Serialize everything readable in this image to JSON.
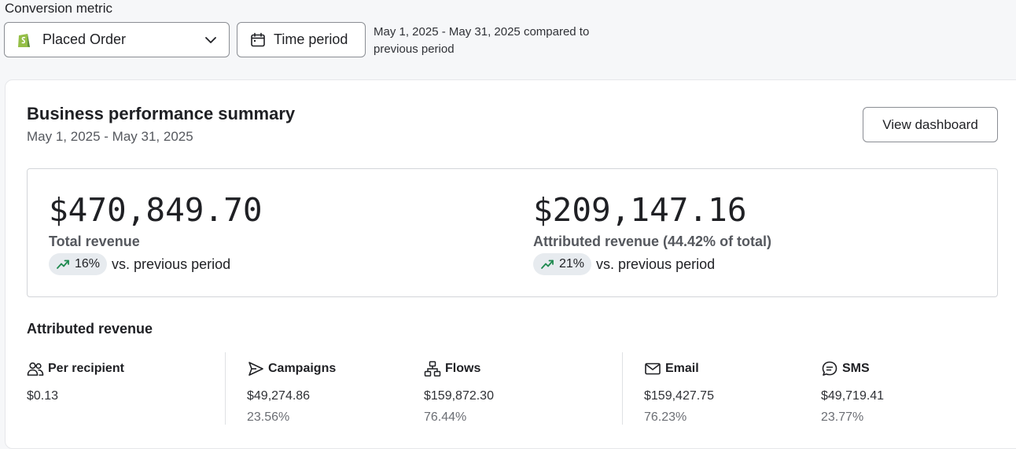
{
  "controls": {
    "metric_label": "Conversion metric",
    "metric_value": "Placed Order",
    "time_button": "Time period",
    "range_text": "May 1, 2025 - May 31, 2025 compared to previous period"
  },
  "summary": {
    "title": "Business performance summary",
    "date_range": "May 1, 2025 - May 31, 2025",
    "dashboard_button": "View dashboard",
    "total": {
      "value": "$470,849.70",
      "label": "Total revenue",
      "change": "16%",
      "change_suffix": "vs. previous period"
    },
    "attributed": {
      "value": "$209,147.16",
      "label": "Attributed revenue (44.42% of total)",
      "change": "21%",
      "change_suffix": "vs. previous period"
    }
  },
  "attributed_revenue": {
    "heading": "Attributed revenue",
    "per_recipient": {
      "label": "Per recipient",
      "value": "$0.13"
    },
    "campaigns": {
      "label": "Campaigns",
      "value": "$49,274.86",
      "share": "23.56%"
    },
    "flows": {
      "label": "Flows",
      "value": "$159,872.30",
      "share": "76.44%"
    },
    "email": {
      "label": "Email",
      "value": "$159,427.75",
      "share": "76.23%"
    },
    "sms": {
      "label": "SMS",
      "value": "$49,719.41",
      "share": "23.77%"
    }
  },
  "colors": {
    "trend_up": "#1e8a4f",
    "shopify_green": "#95bf47"
  },
  "icons": [
    "shopify-icon",
    "chevron-down-icon",
    "calendar-icon",
    "trend-up-icon",
    "users-icon",
    "send-icon",
    "flow-icon",
    "mail-icon",
    "chat-icon"
  ]
}
